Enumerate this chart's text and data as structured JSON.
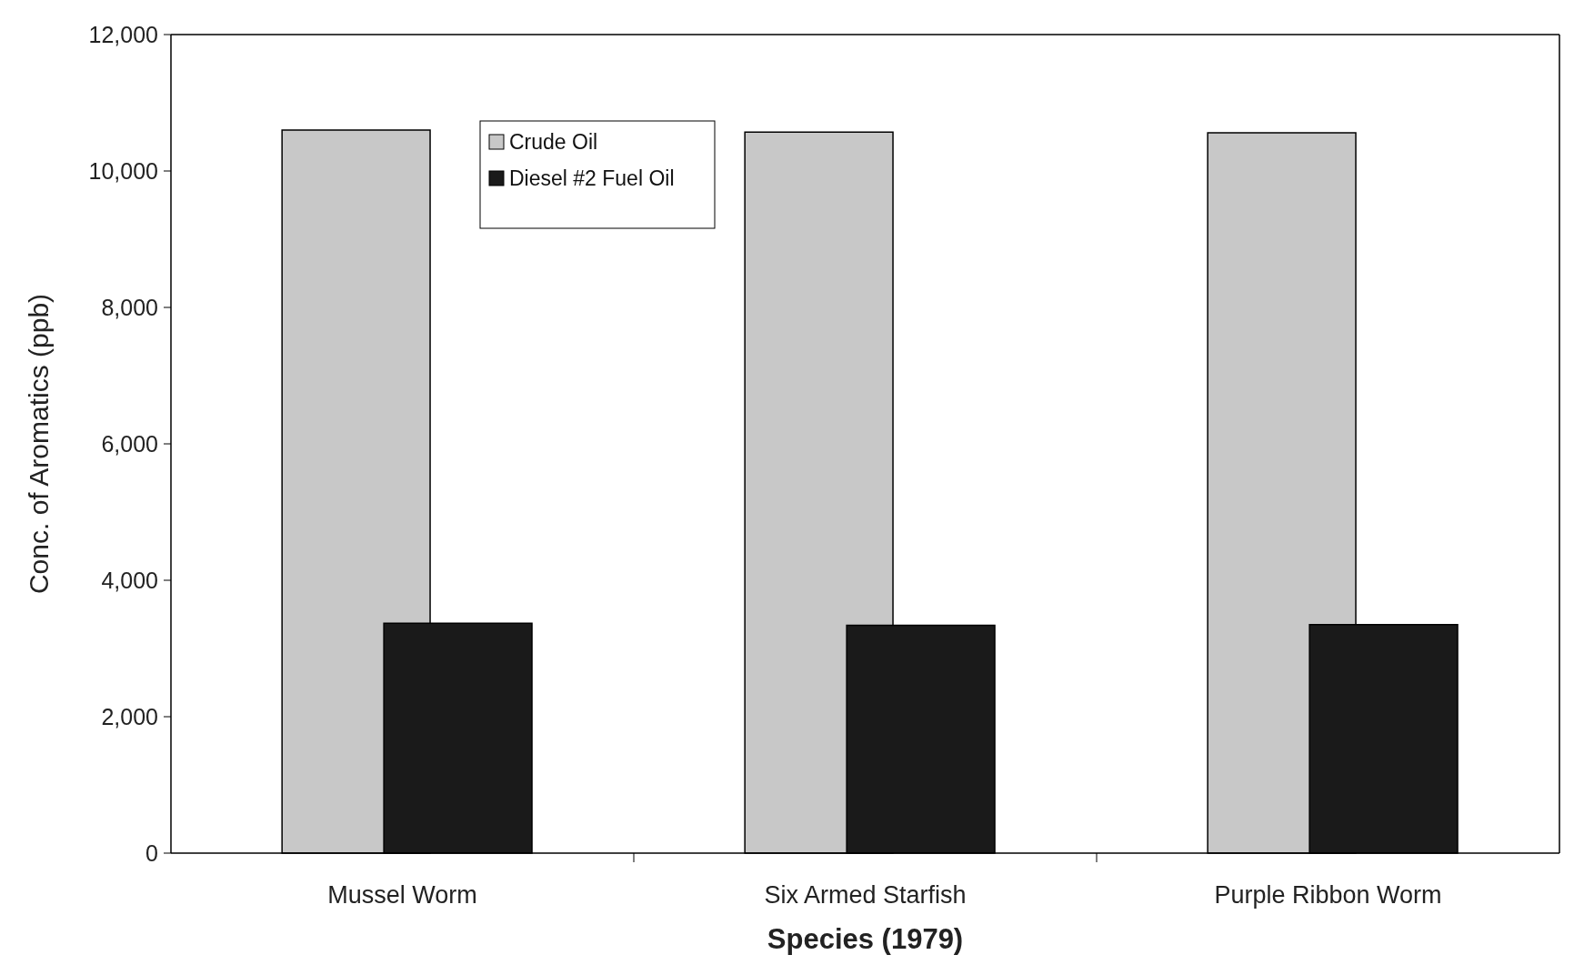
{
  "chart_data": {
    "type": "bar",
    "xlabel": "Species (1979)",
    "ylabel": "Conc. of Aromatics (ppb)",
    "categories": [
      "Mussel Worm",
      "Six Armed Starfish",
      "Purple Ribbon Worm"
    ],
    "series": [
      {
        "name": "Crude Oil",
        "color": "#c8c8c8",
        "values": [
          10600,
          10570,
          10560
        ]
      },
      {
        "name": "Diesel #2 Fuel Oil",
        "color": "#1a1a1a",
        "values": [
          3370,
          3340,
          3350
        ]
      }
    ],
    "ylim": [
      0,
      12000
    ],
    "yticks": [
      {
        "value": 0,
        "label": "0"
      },
      {
        "value": 2000,
        "label": "2,000"
      },
      {
        "value": 4000,
        "label": "4,000"
      },
      {
        "value": 6000,
        "label": "6,000"
      },
      {
        "value": 8000,
        "label": "8,000"
      },
      {
        "value": 10000,
        "label": "10,000"
      },
      {
        "value": 12000,
        "label": "12,000"
      }
    ],
    "grid": false,
    "legend": "top left"
  }
}
